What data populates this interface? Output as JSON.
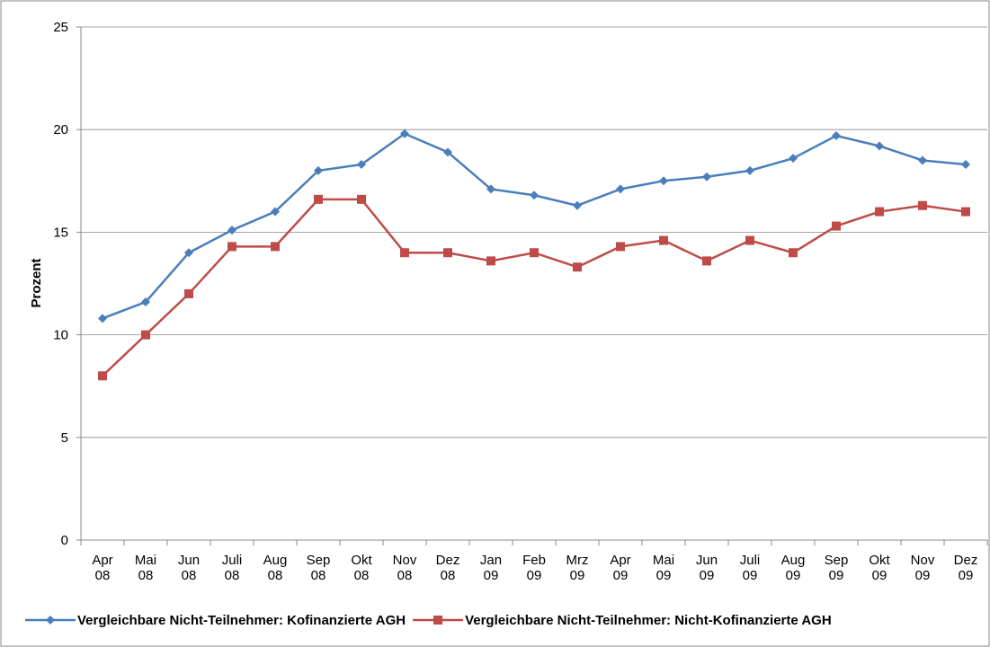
{
  "chart_data": {
    "type": "line",
    "y_label": "Prozent",
    "categories": [
      [
        "Apr",
        "08"
      ],
      [
        "Mai",
        "08"
      ],
      [
        "Jun",
        "08"
      ],
      [
        "Juli",
        "08"
      ],
      [
        "Aug",
        "08"
      ],
      [
        "Sep",
        "08"
      ],
      [
        "Okt",
        "08"
      ],
      [
        "Nov",
        "08"
      ],
      [
        "Dez",
        "08"
      ],
      [
        "Jan",
        "09"
      ],
      [
        "Feb",
        "09"
      ],
      [
        "Mrz",
        "09"
      ],
      [
        "Apr",
        "09"
      ],
      [
        "Mai",
        "09"
      ],
      [
        "Jun",
        "09"
      ],
      [
        "Juli",
        "09"
      ],
      [
        "Aug",
        "09"
      ],
      [
        "Sep",
        "09"
      ],
      [
        "Okt",
        "09"
      ],
      [
        "Nov",
        "09"
      ],
      [
        "Dez",
        "09"
      ]
    ],
    "series": [
      {
        "name": "Vergleichbare Nicht-Teilnehmer: Kofinanzierte AGH",
        "color": "#4a7ebb",
        "marker": "diamond",
        "values": [
          10.8,
          11.6,
          14.0,
          15.1,
          16.0,
          18.0,
          18.3,
          19.8,
          18.9,
          17.1,
          16.8,
          16.3,
          17.1,
          17.5,
          17.7,
          18.0,
          18.6,
          19.7,
          19.2,
          18.5,
          18.3
        ]
      },
      {
        "name": "Vergleichbare Nicht-Teilnehmer: Nicht-Kofinanzierte AGH",
        "color": "#be4b48",
        "marker": "square",
        "values": [
          8.0,
          10.0,
          12.0,
          14.3,
          14.3,
          16.6,
          16.6,
          14.0,
          14.0,
          13.6,
          14.0,
          13.3,
          14.3,
          14.6,
          13.6,
          14.6,
          14.0,
          15.3,
          16.0,
          16.3,
          16.0
        ]
      }
    ],
    "ylim": [
      0,
      25
    ],
    "yticks": [
      0,
      5,
      10,
      15,
      20,
      25
    ],
    "grid": true,
    "legend": "bottom"
  }
}
